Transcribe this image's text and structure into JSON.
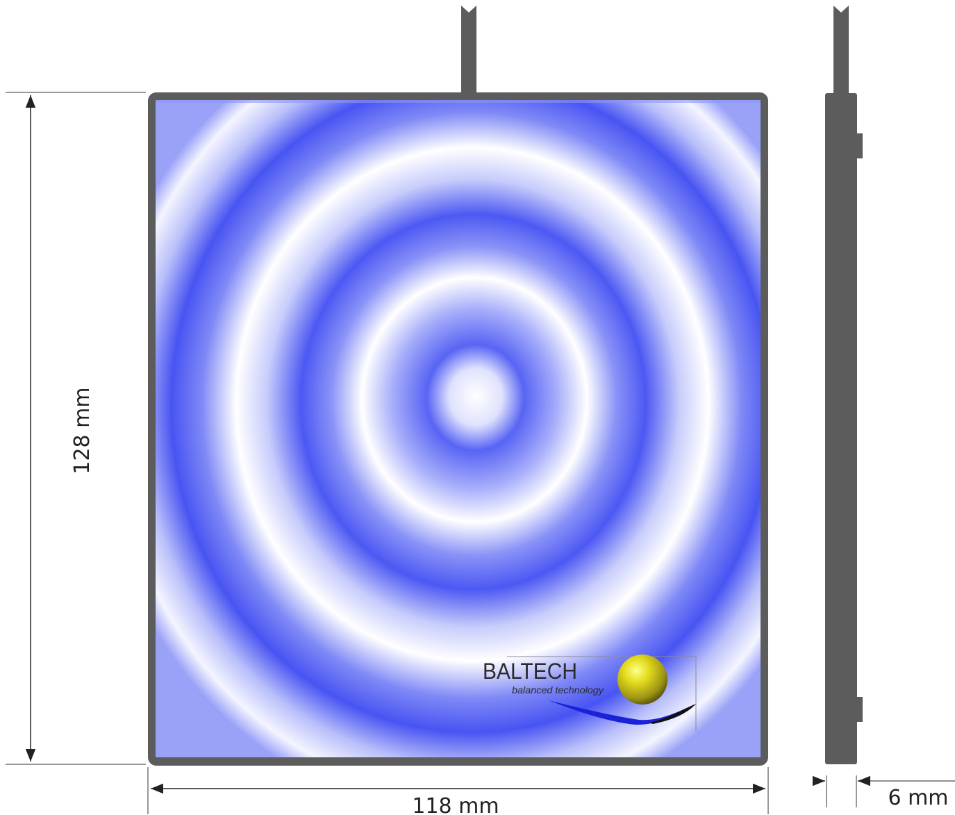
{
  "dimensions": {
    "height_label": "128 mm",
    "width_label": "118 mm",
    "depth_label": "6 mm"
  },
  "logo": {
    "brand": "BALTECH",
    "tagline": "balanced technology"
  },
  "colors": {
    "frame": "#5c5c5c",
    "pattern_blue": "#4a55f2",
    "pattern_light": "#ffffff",
    "logo_sphere": "#c9c21b",
    "logo_swoosh": "#1a22d8"
  }
}
